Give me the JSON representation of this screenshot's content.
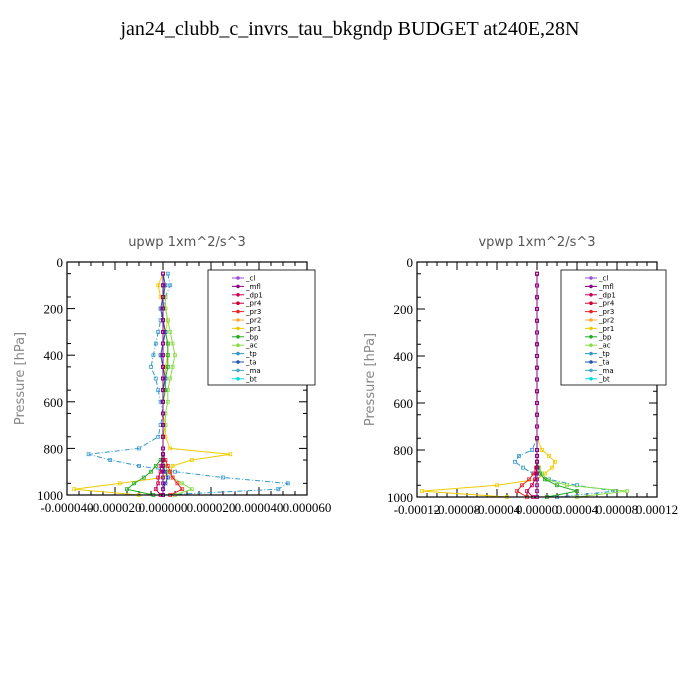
{
  "title": "jan24_clubb_c_invrs_tau_bkgndp  BUDGET at240E,28N",
  "legend_labels": [
    "_cl",
    "_mfl",
    "_dp1",
    "_pr4",
    "_pr3",
    "_pr2",
    "_pr1",
    "_bp",
    "_ac",
    "_tp",
    "_ta",
    "_ma",
    "_bt"
  ],
  "colors": {
    "_cl": "#9a4fd1",
    "_mfl": "#880088",
    "_dp1": "#cc0055",
    "_pr4": "#cc0033",
    "_pr3": "#ee2222",
    "_pr2": "#ffaa33",
    "_pr1": "#eecc00",
    "_bp": "#22aa22",
    "_ac": "#88dd44",
    "_tp": "#3399cc",
    "_ta": "#2255aa",
    "_ma": "#44aacc",
    "_bt": "#00dddd"
  },
  "chart_data": [
    {
      "type": "line",
      "title": "upwp   1xm^2/s^3",
      "ylabel": "Pressure [hPa]",
      "xlabel": "",
      "xlim": [
        -4e-05,
        6e-05
      ],
      "ylim": [
        1000,
        0
      ],
      "xticks": [
        -4e-05,
        -2e-05,
        0.0,
        2e-05,
        4e-05,
        6e-05
      ],
      "xtick_labels": [
        "-0.000040",
        "-0.000020",
        "0.000000",
        "0.000020",
        "0.000040",
        "0.000060"
      ],
      "yticks": [
        0,
        200,
        400,
        600,
        800,
        1000
      ],
      "ytick_labels": [
        "0",
        "200",
        "400",
        "600",
        "800",
        "1000"
      ],
      "legend_position": "top-right",
      "pressure": [
        50,
        100,
        150,
        200,
        250,
        300,
        350,
        400,
        450,
        500,
        550,
        600,
        650,
        700,
        750,
        800,
        825,
        850,
        875,
        900,
        925,
        950,
        975,
        1000
      ],
      "series": [
        {
          "name": "_pr1",
          "values": [
            0,
            -2e-06,
            -1e-06,
            1e-06,
            2e-06,
            1e-06,
            2e-06,
            2e-06,
            1e-06,
            1e-06,
            0.0,
            0.0,
            0.0,
            1e-06,
            1e-06,
            3e-06,
            2.8e-05,
            1.2e-05,
            4e-06,
            3e-06,
            0.0,
            -1.8e-05,
            -3.7e-05,
            -1e-05
          ]
        },
        {
          "name": "_tp",
          "values": [
            2e-06,
            3e-06,
            1e-06,
            0.0,
            -1e-06,
            -2e-06,
            -3e-06,
            -4e-06,
            -5e-06,
            -3e-06,
            -2e-06,
            -1e-06,
            0.0,
            -1e-06,
            -2e-06,
            -1e-05,
            -3.1e-05,
            -2.2e-05,
            -1e-05,
            5e-06,
            2.5e-05,
            5.2e-05,
            4.8e-05,
            0.0
          ]
        },
        {
          "name": "_ac",
          "values": [
            0.0,
            0.0,
            1e-06,
            1e-06,
            2e-06,
            3e-06,
            4e-06,
            5e-06,
            4e-06,
            3e-06,
            2e-06,
            2e-06,
            1e-06,
            1e-06,
            0.0,
            0.0,
            0.0,
            0.0,
            1e-06,
            2e-06,
            4e-06,
            8e-06,
            1.2e-05,
            5e-06
          ]
        },
        {
          "name": "_bp",
          "values": [
            0.0,
            0.0,
            0.0,
            0.0,
            0.0,
            1e-06,
            2e-06,
            2e-06,
            2e-06,
            1e-06,
            1e-06,
            0.0,
            0.0,
            0.0,
            0.0,
            0.0,
            0.0,
            -1e-06,
            -3e-06,
            -5e-06,
            -8e-06,
            -1.2e-05,
            -1.5e-05,
            -4e-06
          ]
        },
        {
          "name": "_pr3",
          "values": [
            0.0,
            0.0,
            0.0,
            0.0,
            0.0,
            0.0,
            0.0,
            0.0,
            0.0,
            0.0,
            0.0,
            0.0,
            0.0,
            0.0,
            0.0,
            0.0,
            0.0,
            1e-06,
            2e-06,
            3e-06,
            4e-06,
            6e-06,
            8e-06,
            3e-06
          ]
        },
        {
          "name": "_ta",
          "values": [
            0.0,
            1e-06,
            0.0,
            -1e-06,
            0.0,
            1e-06,
            0.0,
            -1e-06,
            0.0,
            1e-06,
            0.0,
            0.0,
            0.0,
            0.0,
            0.0,
            0.0,
            0.0,
            0.0,
            0.0,
            1e-06,
            2e-06,
            1e-06,
            0.0,
            0.0
          ]
        },
        {
          "name": "_dp1",
          "values": [
            0.0,
            0.0,
            0.0,
            0.0,
            0.0,
            0.0,
            0.0,
            0.0,
            0.0,
            0.0,
            0.0,
            0.0,
            0.0,
            0.0,
            0.0,
            0.0,
            0.0,
            0.0,
            -1e-06,
            -1e-06,
            -2e-06,
            -2e-06,
            -3e-06,
            -1e-06
          ]
        },
        {
          "name": "_mfl",
          "values": [
            0.0,
            0.0,
            0.0,
            0.0,
            0.0,
            0.0,
            0.0,
            0.0,
            0.0,
            0.0,
            0.0,
            0.0,
            0.0,
            0.0,
            0.0,
            0.0,
            0.0,
            0.0,
            0.0,
            0.0,
            0.0,
            0.0,
            0.0,
            0.0
          ]
        }
      ]
    },
    {
      "type": "line",
      "title": "vpwp   1xm^2/s^3",
      "ylabel": "Pressure [hPa]",
      "xlabel": "",
      "xlim": [
        -0.00012,
        0.00012
      ],
      "ylim": [
        1000,
        0
      ],
      "xticks": [
        -0.00012,
        -8e-05,
        -4e-05,
        0.0,
        4e-05,
        8e-05,
        0.00012
      ],
      "xtick_labels": [
        "-0.00012",
        "-0.00008",
        "-0.00004",
        "0.00000",
        "0.00004",
        "0.00008",
        "0.00012"
      ],
      "yticks": [
        0,
        200,
        400,
        600,
        800,
        1000
      ],
      "ytick_labels": [
        "0",
        "200",
        "400",
        "600",
        "800",
        "1000"
      ],
      "legend_position": "top-right",
      "pressure": [
        50,
        100,
        150,
        200,
        250,
        300,
        350,
        400,
        450,
        500,
        550,
        600,
        650,
        700,
        750,
        800,
        825,
        850,
        875,
        900,
        925,
        950,
        975,
        1000
      ],
      "series": [
        {
          "name": "_pr1",
          "values": [
            0.0,
            0.0,
            0.0,
            0.0,
            0.0,
            0.0,
            0.0,
            0.0,
            0.0,
            0.0,
            0.0,
            0.0,
            0.0,
            0.0,
            0.0,
            5e-06,
            1.2e-05,
            1.8e-05,
            1.5e-05,
            8e-06,
            0.0,
            -4e-05,
            -0.000115,
            -3e-05
          ]
        },
        {
          "name": "_tp",
          "values": [
            0.0,
            0.0,
            0.0,
            0.0,
            0.0,
            0.0,
            0.0,
            0.0,
            0.0,
            0.0,
            0.0,
            0.0,
            0.0,
            0.0,
            0.0,
            -5e-06,
            -1.8e-05,
            -2.2e-05,
            -1.4e-05,
            -4e-06,
            1.2e-05,
            4e-05,
            7.8e-05,
            2e-05
          ]
        },
        {
          "name": "_ac",
          "values": [
            0.0,
            0.0,
            0.0,
            0.0,
            0.0,
            0.0,
            0.0,
            0.0,
            0.0,
            0.0,
            0.0,
            0.0,
            0.0,
            0.0,
            0.0,
            0.0,
            0.0,
            0.0,
            2e-06,
            5e-06,
            1e-05,
            3e-05,
            9e-05,
            4e-05
          ]
        },
        {
          "name": "_bp",
          "values": [
            0.0,
            0.0,
            0.0,
            0.0,
            0.0,
            0.0,
            0.0,
            0.0,
            0.0,
            0.0,
            0.0,
            0.0,
            0.0,
            0.0,
            0.0,
            0.0,
            0.0,
            0.0,
            1e-06,
            3e-06,
            8e-06,
            2e-05,
            4e-05,
            1e-05
          ]
        },
        {
          "name": "_pr3",
          "values": [
            0.0,
            0.0,
            0.0,
            0.0,
            0.0,
            0.0,
            0.0,
            0.0,
            0.0,
            0.0,
            0.0,
            0.0,
            0.0,
            0.0,
            0.0,
            0.0,
            0.0,
            0.0,
            -1e-06,
            -3e-06,
            -8e-06,
            -1.5e-05,
            -2e-05,
            -1e-05
          ]
        },
        {
          "name": "_dp1",
          "values": [
            0.0,
            0.0,
            0.0,
            0.0,
            0.0,
            0.0,
            0.0,
            0.0,
            0.0,
            0.0,
            0.0,
            0.0,
            0.0,
            0.0,
            0.0,
            0.0,
            0.0,
            0.0,
            0.0,
            -1e-06,
            -2e-06,
            -5e-06,
            -1e-05,
            -4e-06
          ]
        },
        {
          "name": "_mfl",
          "values": [
            0.0,
            0.0,
            0.0,
            0.0,
            0.0,
            0.0,
            0.0,
            0.0,
            0.0,
            0.0,
            0.0,
            0.0,
            0.0,
            0.0,
            0.0,
            0.0,
            0.0,
            0.0,
            0.0,
            0.0,
            0.0,
            0.0,
            0.0,
            0.0
          ]
        }
      ]
    }
  ]
}
